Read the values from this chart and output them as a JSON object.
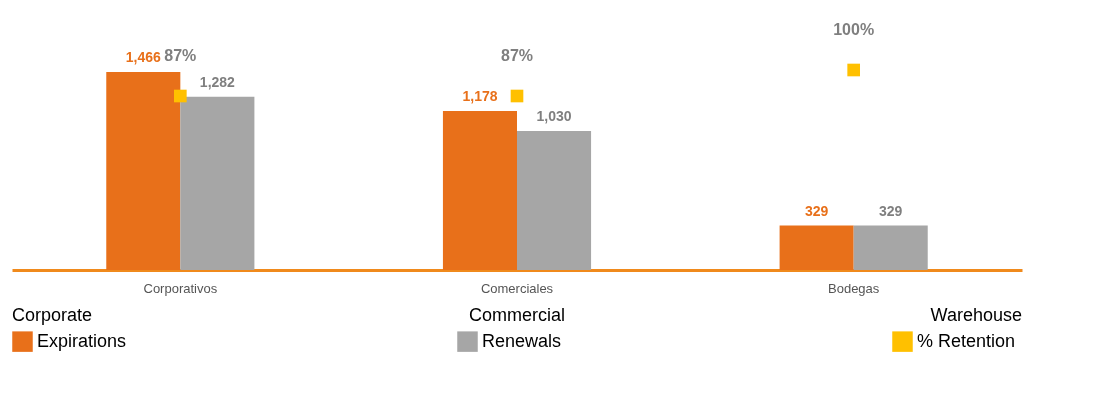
{
  "chart_data": {
    "type": "bar",
    "categories": [
      "Corporativos",
      "Comerciales",
      "Bodegas"
    ],
    "series": [
      {
        "name": "Expirations",
        "color": "#e8701a",
        "values": [
          1466,
          1178,
          329
        ],
        "value_labels": [
          "1,466",
          "1,178",
          "329"
        ]
      },
      {
        "name": "Renewals",
        "color": "#a6a6a6",
        "values": [
          1282,
          1030,
          329
        ],
        "value_labels": [
          "1,282",
          "1,030",
          "329"
        ]
      },
      {
        "name": "% Retention",
        "type": "scatter",
        "axis": "y2",
        "color": "#ffc000",
        "values": [
          87,
          87,
          100
        ],
        "value_labels": [
          "87%",
          "87%",
          "100%"
        ]
      }
    ],
    "legend": "bottom",
    "marker": "square",
    "annotations": [
      "Corporate",
      "Commercial",
      "Warehouse"
    ]
  }
}
